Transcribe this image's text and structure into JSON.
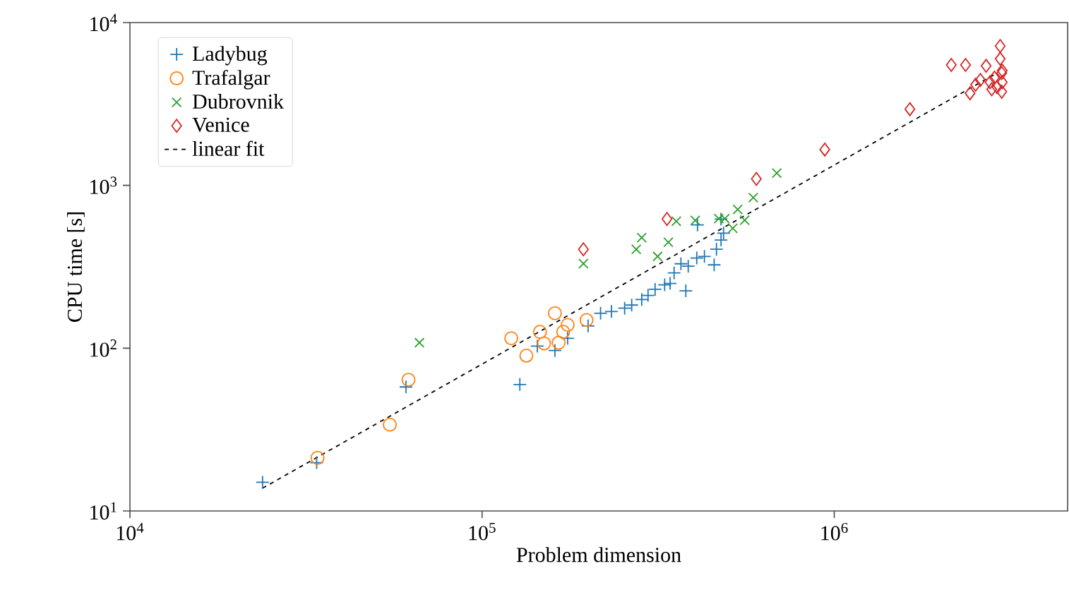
{
  "chart_data": {
    "type": "scatter",
    "xlabel": "Problem dimension",
    "ylabel": "CPU time [s]",
    "log": "xy",
    "legend": "top left",
    "xlim": [
      10000,
      4600000
    ],
    "ylim": [
      10,
      10000
    ],
    "xticks": [
      {
        "value": 10000,
        "label": "10$^{4}$"
      },
      {
        "value": 100000,
        "label": "10$^{5}$"
      },
      {
        "value": 1000000,
        "label": "10$^{6}$"
      }
    ],
    "yticks": [
      {
        "value": 10,
        "label": "10$^{1}$"
      },
      {
        "value": 100,
        "label": "10$^{2}$"
      },
      {
        "value": 1000,
        "label": "10$^{3}$"
      },
      {
        "value": 10000,
        "label": "10$^{4}$"
      }
    ],
    "series": [
      {
        "name": "Ladybug",
        "color": "#1f77b4",
        "marker": "plus",
        "x": [
          23800,
          33900,
          60800,
          128000,
          143500,
          161000,
          175000,
          200000,
          217000,
          233000,
          254000,
          266000,
          284000,
          296000,
          310000,
          330000,
          342000,
          379000,
          351000,
          367000,
          385000,
          407000,
          428000,
          456000,
          463000,
          477000,
          485000,
          477000,
          409000
        ],
        "values": [
          15.0,
          19.8,
          57.8,
          59.8,
          103,
          96.7,
          115,
          137,
          164,
          168,
          176,
          184,
          199,
          211,
          230,
          245,
          250,
          225,
          290,
          330,
          319,
          358,
          366,
          325,
          405,
          462,
          509,
          621,
          572
        ]
      },
      {
        "name": "Trafalgar",
        "color": "#ff7f0e",
        "marker": "circle",
        "x": [
          34100,
          54700,
          61800,
          121000,
          133600,
          146000,
          150000,
          161000,
          165000,
          170000,
          175000,
          198000
        ],
        "values": [
          21.2,
          33.9,
          64.0,
          115,
          90,
          126,
          107,
          164,
          108,
          126,
          139,
          149
        ]
      },
      {
        "name": "Dubrovnik",
        "color": "#2ca02c",
        "marker": "cross",
        "x": [
          66400,
          194000,
          274000,
          284000,
          315000,
          338000,
          356000,
          403000,
          470000,
          489000,
          515000,
          532000,
          557000,
          589000,
          687000
        ],
        "values": [
          108,
          331,
          405,
          477,
          366,
          447,
          602,
          609,
          625,
          625,
          545,
          712,
          611,
          841,
          1189
        ]
      },
      {
        "name": "Venice",
        "color": "#d62728",
        "marker": "diamond",
        "x": [
          194000,
          335000,
          601000,
          940000,
          1640000,
          2150000,
          2360000,
          2430000,
          2520000,
          2600000,
          2700000,
          2770000,
          2850000,
          2960000,
          2960000,
          2990000,
          2990000,
          3000000,
          2900000,
          2800000,
          3000000
        ],
        "values": [
          405,
          622,
          1096,
          1660,
          2940,
          5490,
          5490,
          3680,
          4150,
          4440,
          5420,
          4300,
          4590,
          7170,
          5990,
          4900,
          3760,
          4300,
          4010,
          3890,
          5070
        ]
      },
      {
        "name": "linear fit",
        "type": "line",
        "color": "#000000",
        "marker": "none",
        "line_style": "dashed",
        "x": [
          23800,
          2900000
        ],
        "values": [
          13.8,
          4900
        ]
      }
    ]
  }
}
